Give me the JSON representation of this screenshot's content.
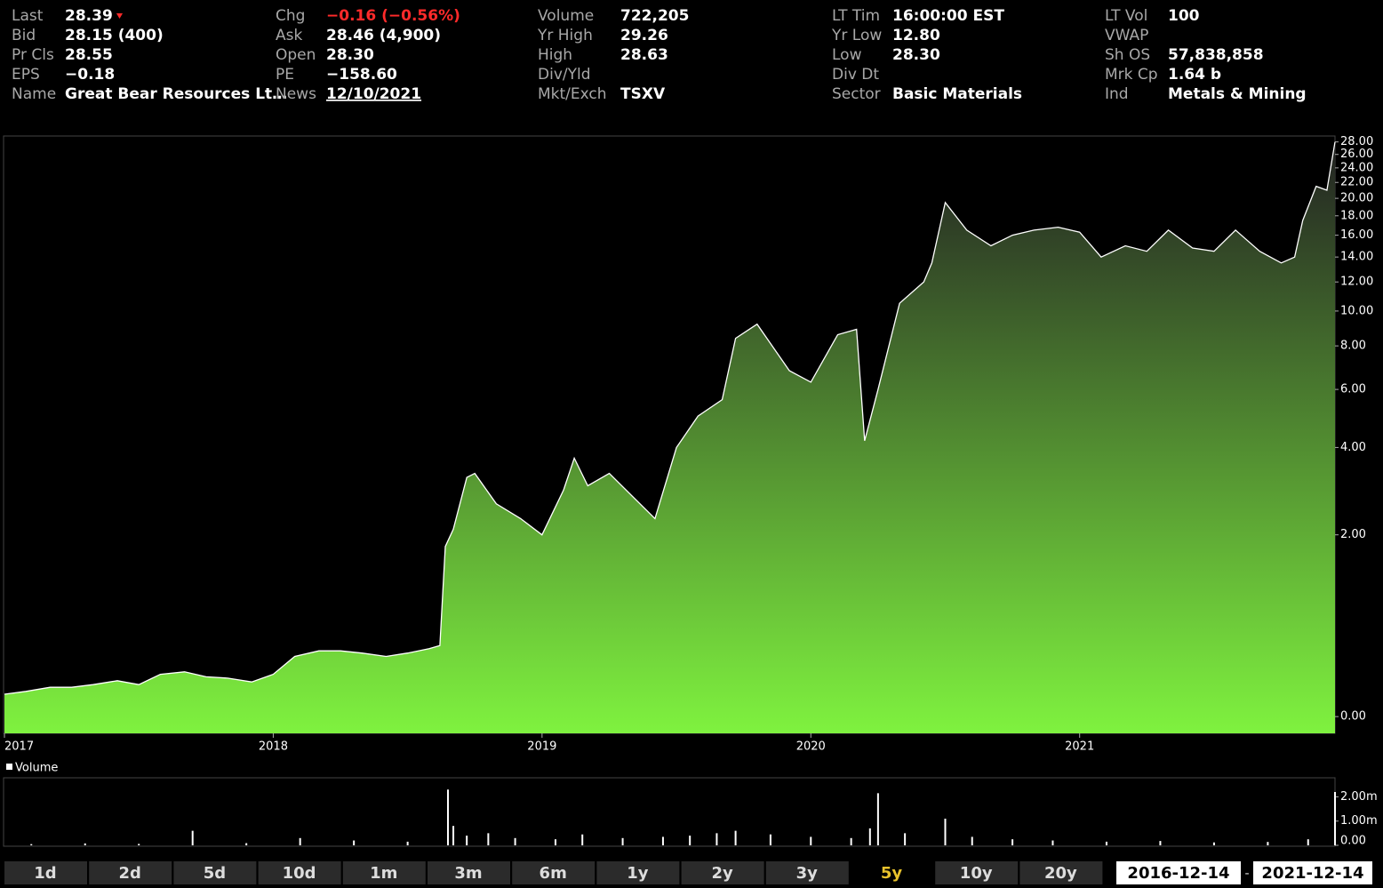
{
  "quote": {
    "columns": [
      [
        {
          "label": "Last",
          "value": "28.39"
        },
        {
          "label": "Bid",
          "value": "28.15 (400)"
        },
        {
          "label": "Pr Cls",
          "value": "28.55"
        },
        {
          "label": "EPS",
          "value": "−0.18"
        },
        {
          "label": "Name",
          "value": "Great Bear Resources Lt…"
        }
      ],
      [
        {
          "label": "Chg",
          "value": "−0.16 (−0.56%)",
          "color": "#ff2a2a"
        },
        {
          "label": "Ask",
          "value": "28.46 (4,900)"
        },
        {
          "label": "Open",
          "value": "28.30"
        },
        {
          "label": "PE",
          "value": "−158.60"
        },
        {
          "label": "News",
          "value": "12/10/2021",
          "link": true
        }
      ],
      [
        {
          "label": "Volume",
          "value": "722,205"
        },
        {
          "label": "Yr High",
          "value": "29.26"
        },
        {
          "label": "High",
          "value": "28.63"
        },
        {
          "label": "Div/Yld"
        },
        {
          "label": "Mkt/Exch",
          "value": "TSXV"
        }
      ],
      [
        {
          "label": "LT Tim",
          "value": "16:00:00 EST"
        },
        {
          "label": "Yr Low",
          "value": "12.80"
        },
        {
          "label": "Low",
          "value": "28.30"
        },
        {
          "label": "Div Dt"
        },
        {
          "label": "Sector",
          "value": "Basic Materials"
        }
      ],
      [
        {
          "label": "LT Vol",
          "value": "100"
        },
        {
          "label": "VWAP"
        },
        {
          "label": "Sh OS",
          "value": "57,838,858"
        },
        {
          "label": "Mrk Cp",
          "value": "1.64 b"
        },
        {
          "label": "Ind",
          "value": "Metals & Mining"
        }
      ]
    ]
  },
  "chart_data": [
    {
      "type": "area",
      "color": "#7ff23f",
      "ylog": true,
      "x": [
        2017.0,
        2017.08,
        2017.17,
        2017.25,
        2017.33,
        2017.42,
        2017.5,
        2017.58,
        2017.67,
        2017.75,
        2017.83,
        2017.92,
        2018.0,
        2018.08,
        2018.17,
        2018.25,
        2018.33,
        2018.42,
        2018.5,
        2018.58,
        2018.62,
        2018.64,
        2018.67,
        2018.72,
        2018.75,
        2018.83,
        2018.92,
        2019.0,
        2019.08,
        2019.12,
        2019.17,
        2019.25,
        2019.33,
        2019.42,
        2019.5,
        2019.58,
        2019.67,
        2019.72,
        2019.8,
        2019.92,
        2020.0,
        2020.1,
        2020.17,
        2020.2,
        2020.25,
        2020.33,
        2020.42,
        2020.45,
        2020.5,
        2020.58,
        2020.67,
        2020.75,
        2020.83,
        2020.92,
        2021.0,
        2021.08,
        2021.17,
        2021.25,
        2021.33,
        2021.42,
        2021.5,
        2021.58,
        2021.67,
        2021.75,
        2021.8,
        2021.83,
        2021.88,
        2021.92,
        2021.95
      ],
      "values": [
        0.15,
        0.17,
        0.2,
        0.2,
        0.22,
        0.25,
        0.22,
        0.3,
        0.32,
        0.28,
        0.27,
        0.24,
        0.3,
        0.45,
        0.5,
        0.5,
        0.48,
        0.45,
        0.48,
        0.52,
        0.55,
        1.8,
        2.1,
        3.2,
        3.3,
        2.6,
        2.3,
        2.0,
        2.9,
        3.7,
        3.0,
        3.3,
        2.8,
        2.3,
        4.0,
        5.0,
        5.6,
        8.4,
        9.2,
        6.8,
        6.3,
        8.6,
        8.9,
        4.2,
        6.0,
        10.5,
        12.0,
        13.5,
        19.5,
        16.5,
        15.0,
        16.0,
        16.5,
        16.8,
        16.3,
        14.0,
        15.0,
        14.5,
        16.5,
        14.8,
        14.5,
        16.5,
        14.5,
        13.5,
        14.0,
        17.5,
        21.5,
        21.0,
        28.0
      ],
      "xlim": [
        2017,
        2021.95
      ],
      "xticks": [
        2017,
        2018,
        2019,
        2020,
        2021
      ],
      "ylim": [
        -0.1,
        29
      ],
      "yticks": [
        {
          "value": 0,
          "label": "0.00"
        },
        {
          "value": 2,
          "label": "2.00"
        },
        {
          "value": 4,
          "label": "4.00"
        },
        {
          "value": 6,
          "label": "6.00"
        },
        {
          "value": 8,
          "label": "8.00"
        },
        {
          "value": 10,
          "label": "10.00"
        },
        {
          "value": 12,
          "label": "12.00"
        },
        {
          "value": 14,
          "label": "14.00"
        },
        {
          "value": 16,
          "label": "16.00"
        },
        {
          "value": 18,
          "label": "18.00"
        },
        {
          "value": 20,
          "label": "20.00"
        },
        {
          "value": 22,
          "label": "22.00"
        },
        {
          "value": 24,
          "label": "24.00"
        },
        {
          "value": 26,
          "label": "26.00"
        },
        {
          "value": 28,
          "label": "28.00"
        }
      ]
    },
    {
      "type": "bar",
      "title": "Volume",
      "color": "#ffffff",
      "x": [
        2017.1,
        2017.3,
        2017.5,
        2017.7,
        2017.9,
        2018.1,
        2018.3,
        2018.5,
        2018.65,
        2018.67,
        2018.72,
        2018.8,
        2018.9,
        2019.05,
        2019.15,
        2019.3,
        2019.45,
        2019.55,
        2019.65,
        2019.72,
        2019.85,
        2020.0,
        2020.15,
        2020.22,
        2020.25,
        2020.35,
        2020.5,
        2020.6,
        2020.75,
        2020.9,
        2021.1,
        2021.3,
        2021.5,
        2021.7,
        2021.85,
        2021.95
      ],
      "values": [
        50000,
        80000,
        60000,
        600000,
        90000,
        300000,
        200000,
        150000,
        2300000,
        800000,
        400000,
        500000,
        300000,
        250000,
        450000,
        300000,
        350000,
        400000,
        500000,
        600000,
        450000,
        350000,
        300000,
        700000,
        2150000,
        500000,
        1100000,
        350000,
        250000,
        200000,
        150000,
        180000,
        120000,
        140000,
        250000,
        2200000
      ],
      "xlim": [
        2017,
        2021.95
      ],
      "ylim": [
        0,
        2750000
      ],
      "yticks": [
        {
          "value": 0,
          "label": "0.00"
        },
        {
          "value": 1000000,
          "label": "1.00m"
        },
        {
          "value": 2000000,
          "label": "2.00m"
        }
      ]
    }
  ],
  "toolbar": {
    "ranges": [
      "1d",
      "2d",
      "5d",
      "10d",
      "1m",
      "3m",
      "6m",
      "1y",
      "2y",
      "3y",
      "5y",
      "10y",
      "20y"
    ],
    "active": "5y",
    "start": "2016-12-14",
    "separator": "-",
    "end": "2021-12-14"
  }
}
